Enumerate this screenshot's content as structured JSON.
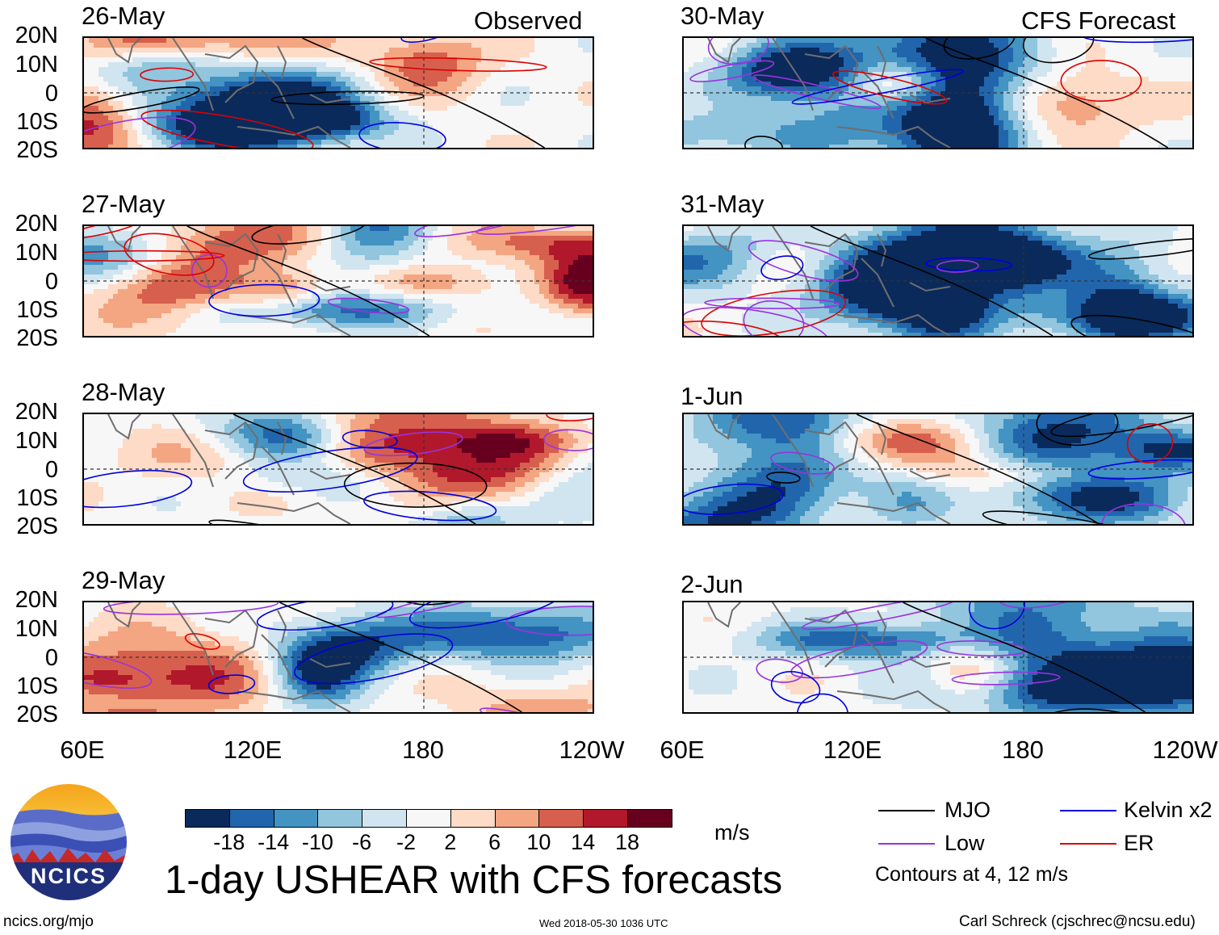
{
  "columns": [
    {
      "title": "Observed",
      "dates": [
        "26-May",
        "27-May",
        "28-May",
        "29-May"
      ]
    },
    {
      "title": "CFS Forecast",
      "dates": [
        "30-May",
        "31-May",
        "1-Jun",
        "2-Jun"
      ]
    }
  ],
  "lat_labels": [
    "20N",
    "10N",
    "0",
    "10S",
    "20S"
  ],
  "lon_labels": [
    "60E",
    "120E",
    "180",
    "120W"
  ],
  "colorbar": {
    "ticks": [
      "-18",
      "-14",
      "-10",
      "-6",
      "-2",
      "2",
      "6",
      "10",
      "14",
      "18"
    ],
    "colors": [
      "#0a2a5c",
      "#2166ac",
      "#4393c3",
      "#92c5de",
      "#d1e5f0",
      "#f7f7f7",
      "#fddbc7",
      "#f4a582",
      "#d6604d",
      "#b2182b",
      "#67001f"
    ],
    "units": "m/s"
  },
  "title": "1-day USHEAR with CFS forecasts",
  "legend": {
    "items": [
      {
        "label": "MJO",
        "color": "#000000"
      },
      {
        "label": "Kelvin x2",
        "color": "#0000dd"
      },
      {
        "label": "Low",
        "color": "#9933dd"
      },
      {
        "label": "ER",
        "color": "#dd0000"
      }
    ],
    "note": "Contours at 4, 12 m/s"
  },
  "logo_text": "NCICS",
  "footer": {
    "url": "ncics.org/mjo",
    "timestamp": "Wed 2018-05-30 1036 UTC",
    "author": "Carl Schreck (cjschrec@ncsu.edu)"
  }
}
